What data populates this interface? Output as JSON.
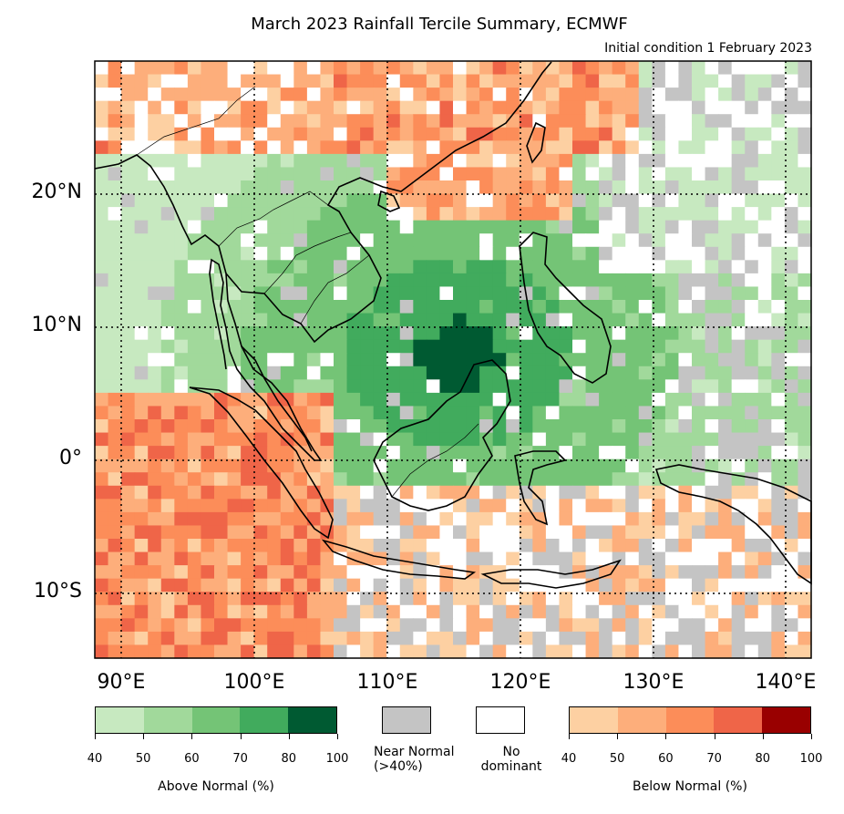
{
  "title": "March 2023 Rainfall Tercile Summary, ECMWF",
  "subtitle": "Initial condition 1 February 2023",
  "lat_ticks": [
    "20°N",
    "10°N",
    "0°",
    "10°S"
  ],
  "lon_ticks": [
    "90°E",
    "100°E",
    "110°E",
    "120°E",
    "130°E",
    "140°E"
  ],
  "legend": {
    "above": {
      "label": "Above Normal (%)",
      "ticks": [
        "40",
        "50",
        "60",
        "70",
        "80",
        "100"
      ],
      "colors": [
        "#c7e9c0",
        "#a1d99b",
        "#74c476",
        "#41ab5d",
        "#005a32"
      ]
    },
    "near": {
      "label_line1": "Near Normal",
      "label_line2": "(>40%)",
      "color": "#c4c4c4"
    },
    "none": {
      "label_line1": "No",
      "label_line2": "dominant",
      "color": "#ffffff"
    },
    "below": {
      "label": "Below Normal (%)",
      "ticks": [
        "40",
        "50",
        "60",
        "70",
        "80",
        "100"
      ],
      "colors": [
        "#fdd0a2",
        "#fdae7b",
        "#fc8d59",
        "#ef6548",
        "#990000"
      ]
    }
  }
}
